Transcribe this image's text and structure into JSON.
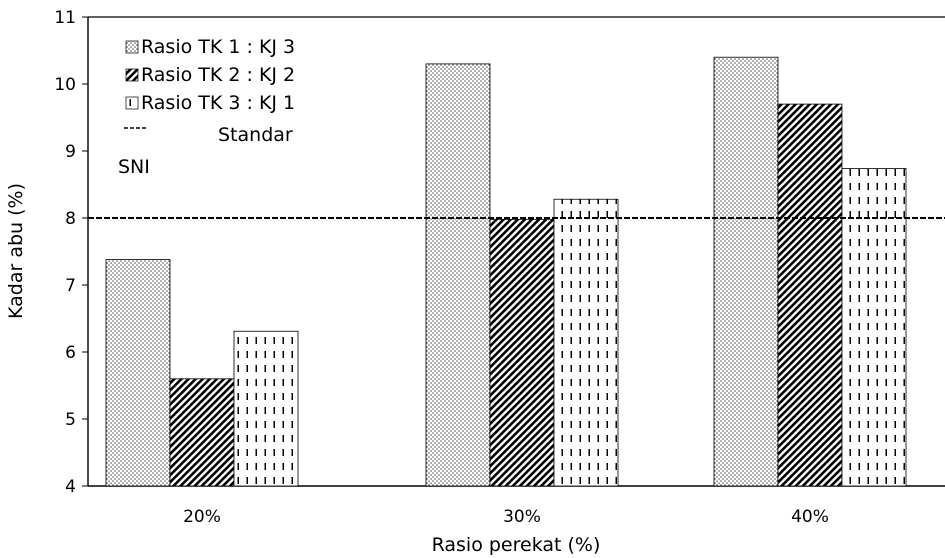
{
  "chart_data": {
    "type": "bar",
    "categories": [
      "20%",
      "30%",
      "40%"
    ],
    "series": [
      {
        "name": "Rasio TK 1 : KJ 3",
        "values": [
          7.38,
          10.3,
          10.4
        ],
        "pattern": "dots"
      },
      {
        "name": "Rasio TK 2 : KJ 2",
        "values": [
          5.6,
          7.98,
          9.7
        ],
        "pattern": "diagonal"
      },
      {
        "name": "Rasio TK 3 : KJ 1",
        "values": [
          6.31,
          8.28,
          8.74
        ],
        "pattern": "dashes"
      }
    ],
    "reference_line": {
      "value": 8.0,
      "label_line1": "Standar",
      "label_line2": "SNI",
      "style": "dashed"
    },
    "ylim": [
      4,
      11
    ],
    "yticks": [
      "4",
      "5",
      "6",
      "7",
      "8",
      "9",
      "10",
      "11"
    ],
    "xlabel": "Rasio perekat (%)",
    "ylabel": "Kadar abu (%)",
    "grid": false,
    "legend_position": "top-left",
    "colors": {
      "bar_fill": "#ffffff",
      "ink": "#000000"
    }
  }
}
